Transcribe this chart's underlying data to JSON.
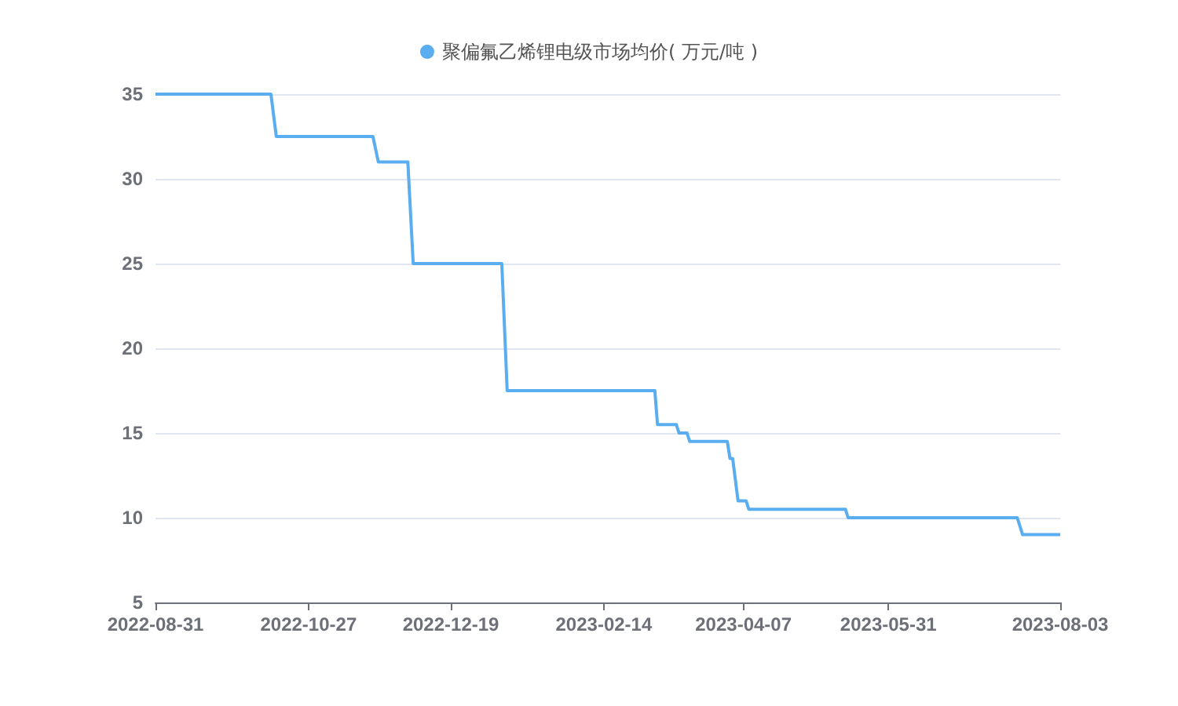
{
  "chart_data": {
    "type": "line",
    "legend": "top",
    "grid": "y",
    "marker": "none",
    "xlim": [
      "2022-08-31",
      "2023-08-03"
    ],
    "xticks": [
      "2022-08-31",
      "2022-10-27",
      "2022-12-19",
      "2023-02-14",
      "2023-04-07",
      "2023-05-31",
      "2023-08-03"
    ],
    "ylim": [
      5,
      35
    ],
    "yticks": [
      5,
      10,
      15,
      20,
      25,
      30,
      35
    ],
    "series": [
      {
        "name": "聚偏氟乙烯锂电级市场均价( 万元/吨 )",
        "color": "#5aaef0",
        "x": [
          "2022-08-31",
          "2022-10-13",
          "2022-10-15",
          "2022-11-20",
          "2022-11-22",
          "2022-12-03",
          "2022-12-05",
          "2023-01-07",
          "2023-01-09",
          "2023-03-05",
          "2023-03-06",
          "2023-03-13",
          "2023-03-14",
          "2023-03-17",
          "2023-03-18",
          "2023-04-01",
          "2023-04-02",
          "2023-04-03",
          "2023-04-05",
          "2023-04-08",
          "2023-04-09",
          "2023-05-15",
          "2023-05-16",
          "2023-07-18",
          "2023-07-20",
          "2023-08-03"
        ],
        "values": [
          35,
          35,
          32.5,
          32.5,
          31,
          31,
          25,
          25,
          17.5,
          17.5,
          15.5,
          15.5,
          15,
          15,
          14.5,
          14.5,
          13.5,
          13.5,
          11,
          11,
          10.5,
          10.5,
          10,
          10,
          9,
          9
        ]
      }
    ]
  }
}
